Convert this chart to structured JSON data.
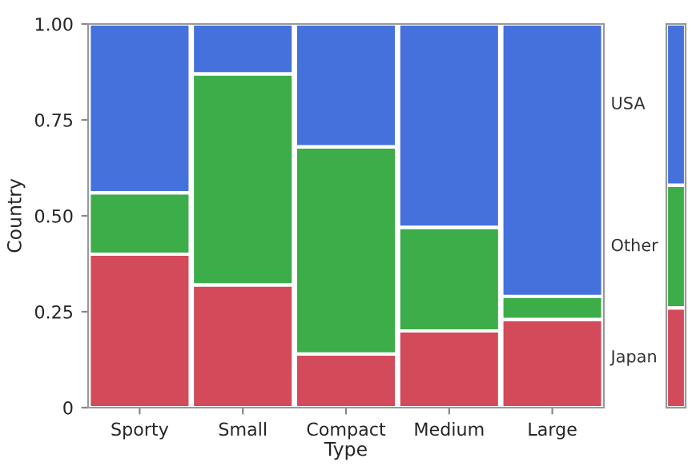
{
  "chart_data": [
    {
      "type": "bar",
      "stacked": true,
      "xlabel": "Type",
      "ylabel": "Country",
      "categories": [
        "Sporty",
        "Small",
        "Compact",
        "Medium",
        "Large"
      ],
      "series": [
        {
          "color": "#d34a5a",
          "values": [
            0.4,
            0.32,
            0.14,
            0.2,
            0.23
          ]
        },
        {
          "color": "#3cad48",
          "values": [
            0.16,
            0.55,
            0.54,
            0.27,
            0.06
          ]
        },
        {
          "color": "#4571dc",
          "values": [
            0.44,
            0.13,
            0.32,
            0.53,
            0.71
          ]
        }
      ],
      "ylim": [
        0,
        1
      ],
      "yticks": [
        0,
        {
          "value": 0.25,
          "label": "0.25"
        },
        {
          "value": 0.5,
          "label": "0.50"
        },
        {
          "value": 0.75,
          "label": "0.75"
        },
        {
          "value": 1,
          "label": "1.00"
        }
      ],
      "legend": false
    },
    {
      "type": "bar",
      "stacked": true,
      "categories": [
        null
      ],
      "series": [
        {
          "name": "Japan",
          "color": "#d34a5a",
          "values": [
            0.26
          ]
        },
        {
          "name": "Other",
          "color": "#3cad48",
          "values": [
            0.32
          ]
        },
        {
          "name": "USA",
          "color": "#4571dc",
          "values": [
            0.42
          ]
        }
      ],
      "ylim": [
        0,
        1
      ],
      "tick_labels": false,
      "legend": false
    }
  ]
}
